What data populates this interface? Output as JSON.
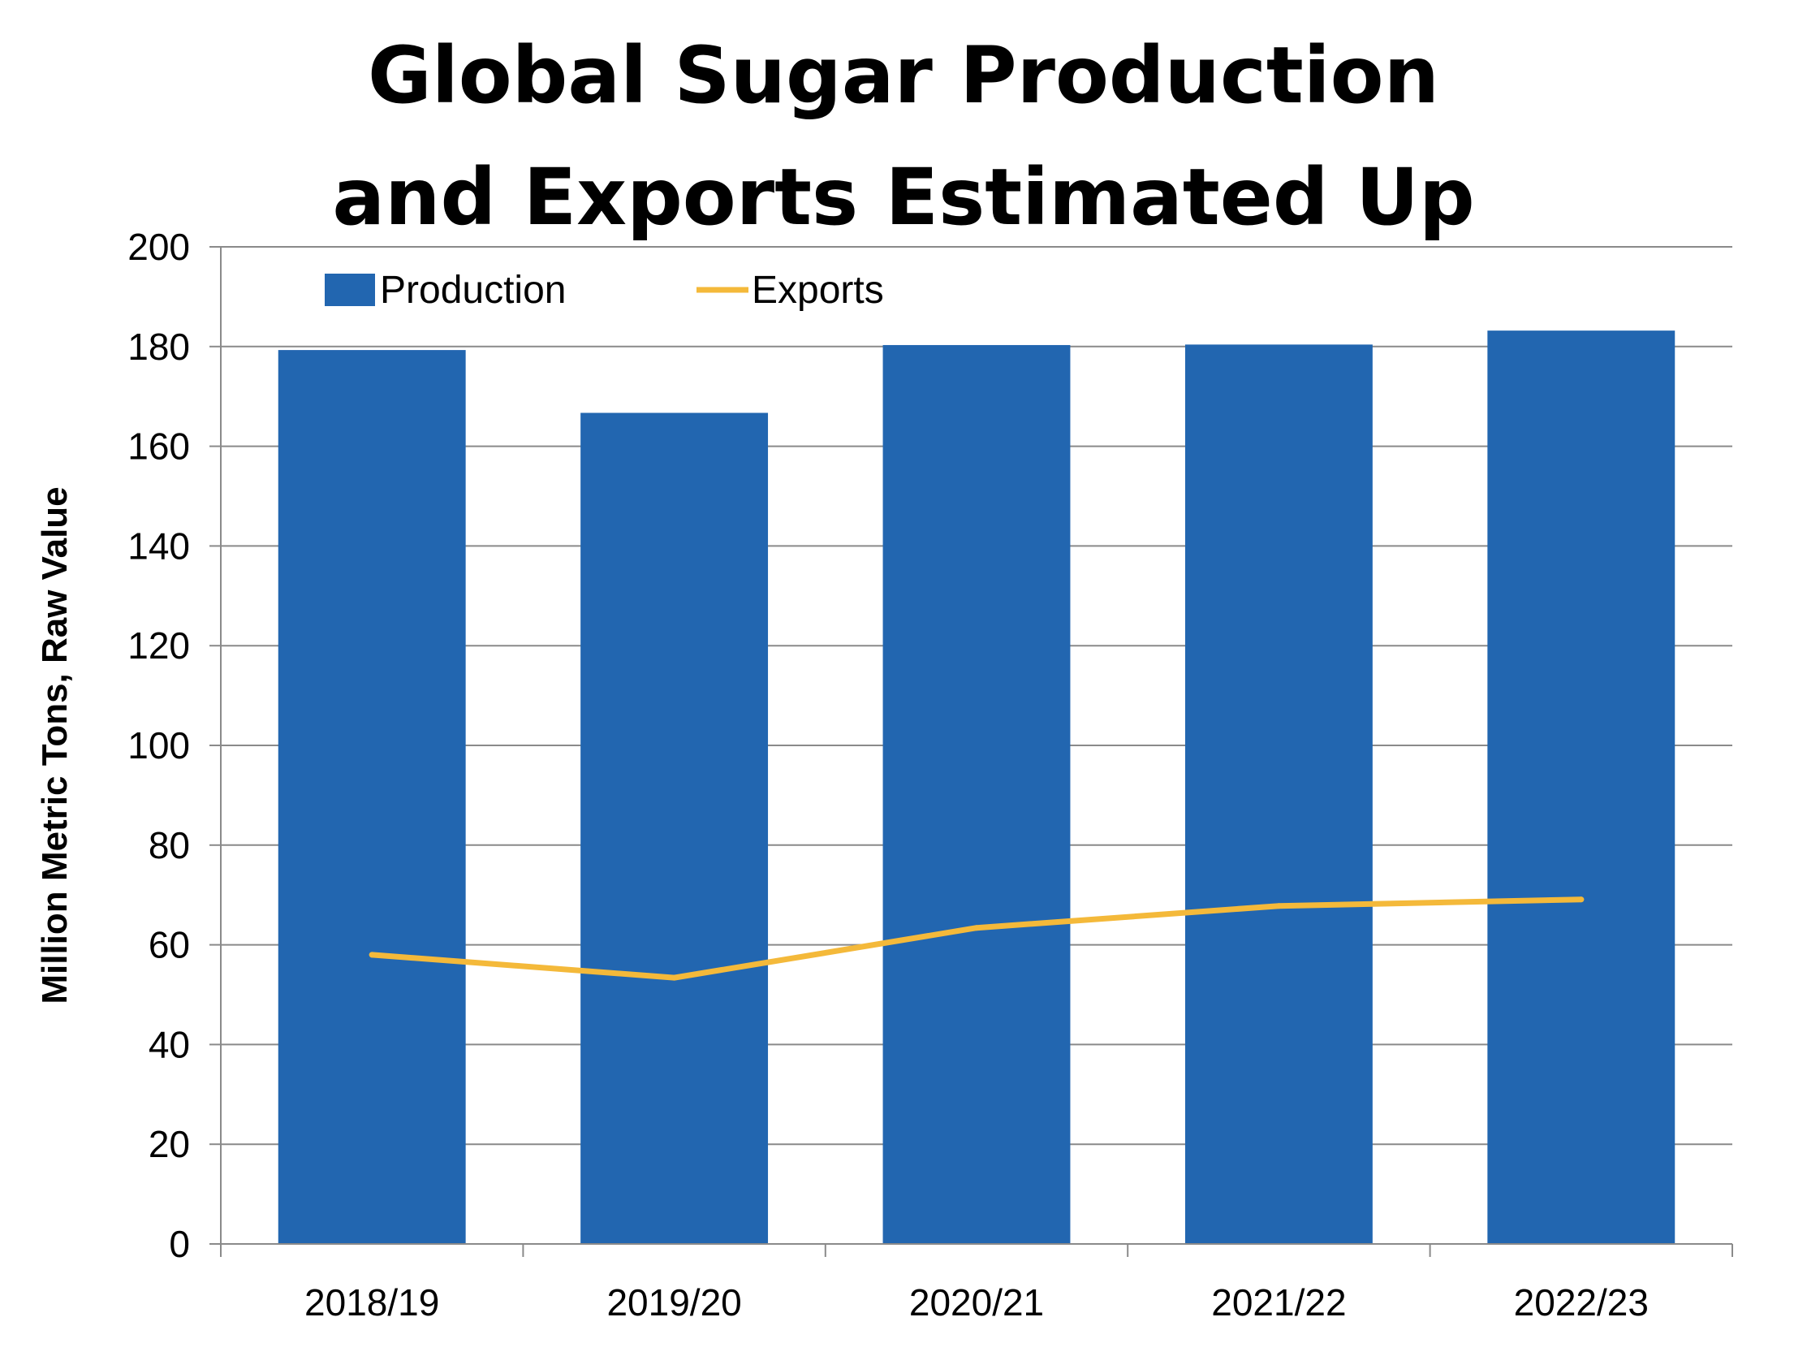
{
  "colors": {
    "production": "#2266B0",
    "exports": "#F4B93A",
    "grid": "#8a8a8a",
    "axis": "#8a8a8a"
  },
  "chart_data": {
    "type": "bar",
    "title_lines": [
      "Global Sugar Production",
      "and Exports Estimated Up"
    ],
    "xlabel": "",
    "ylabel": "Million Metric Tons, Raw Value",
    "categories": [
      "2018/19",
      "2019/20",
      "2020/21",
      "2021/22",
      "2022/23"
    ],
    "ylim": [
      0,
      200
    ],
    "yticks": [
      0,
      20,
      40,
      60,
      80,
      100,
      120,
      140,
      160,
      180,
      200
    ],
    "grid": true,
    "legend_position": "top-left",
    "series": [
      {
        "name": "Production",
        "type": "bar",
        "values": [
          179.3,
          166.7,
          180.3,
          180.4,
          183.2
        ]
      },
      {
        "name": "Exports",
        "type": "line",
        "values": [
          58.0,
          53.4,
          63.4,
          67.8,
          69.1
        ]
      }
    ]
  }
}
